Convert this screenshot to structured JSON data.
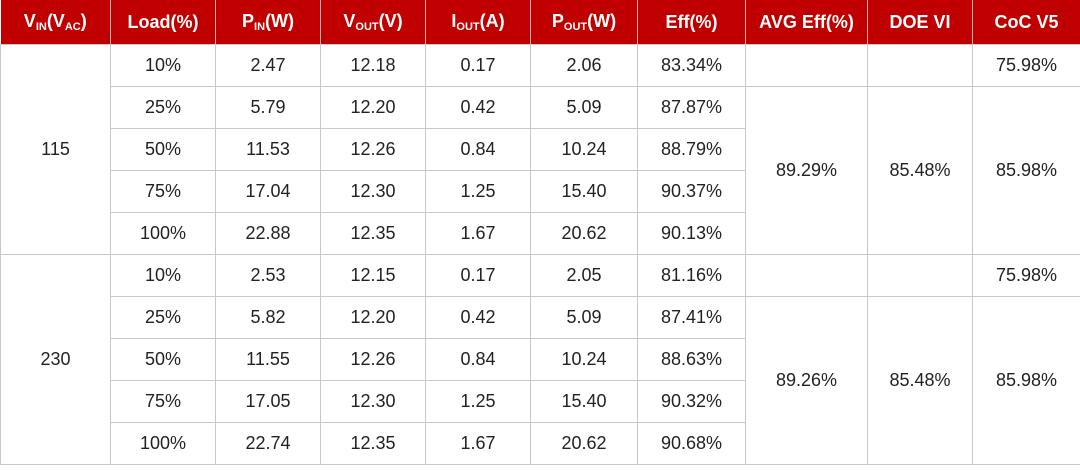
{
  "table": {
    "header": [
      [
        {
          "text": "V"
        },
        {
          "sub": "IN"
        },
        {
          "text": "(V"
        },
        {
          "sub": "AC"
        },
        {
          "text": ")"
        }
      ],
      [
        {
          "text": "Load(%)"
        }
      ],
      [
        {
          "text": "P"
        },
        {
          "sub": "IN"
        },
        {
          "text": "(W)"
        }
      ],
      [
        {
          "text": "V"
        },
        {
          "sub": "OUT"
        },
        {
          "text": "(V)"
        }
      ],
      [
        {
          "text": "I"
        },
        {
          "sub": "OUT"
        },
        {
          "text": "(A)"
        }
      ],
      [
        {
          "text": "P"
        },
        {
          "sub": "OUT"
        },
        {
          "text": "(W)"
        }
      ],
      [
        {
          "text": "Eff(%)"
        }
      ],
      [
        {
          "text": "AVG Eff(%)"
        }
      ],
      [
        {
          "text": "DOE VI"
        }
      ],
      [
        {
          "text": "CoC V5"
        }
      ]
    ],
    "groups": [
      {
        "vin": "115",
        "rows": [
          [
            "10%",
            "2.47",
            "12.18",
            "0.17",
            "2.06",
            "83.34%"
          ],
          [
            "25%",
            "5.79",
            "12.20",
            "0.42",
            "5.09",
            "87.87%"
          ],
          [
            "50%",
            "11.53",
            "12.26",
            "0.84",
            "10.24",
            "88.79%"
          ],
          [
            "75%",
            "17.04",
            "12.30",
            "1.25",
            "15.40",
            "90.37%"
          ],
          [
            "100%",
            "22.88",
            "12.35",
            "1.67",
            "20.62",
            "90.13%"
          ]
        ],
        "coc_light_load": "75.98%",
        "avg_eff": "89.29%",
        "doe": "85.48%",
        "coc": "85.98%"
      },
      {
        "vin": "230",
        "rows": [
          [
            "10%",
            "2.53",
            "12.15",
            "0.17",
            "2.05",
            "81.16%"
          ],
          [
            "25%",
            "5.82",
            "12.20",
            "0.42",
            "5.09",
            "87.41%"
          ],
          [
            "50%",
            "11.55",
            "12.26",
            "0.84",
            "10.24",
            "88.63%"
          ],
          [
            "75%",
            "17.05",
            "12.30",
            "1.25",
            "15.40",
            "90.32%"
          ],
          [
            "100%",
            "22.74",
            "12.35",
            "1.67",
            "20.62",
            "90.68%"
          ]
        ],
        "coc_light_load": "75.98%",
        "avg_eff": "89.26%",
        "doe": "85.48%",
        "coc": "85.98%"
      }
    ]
  }
}
